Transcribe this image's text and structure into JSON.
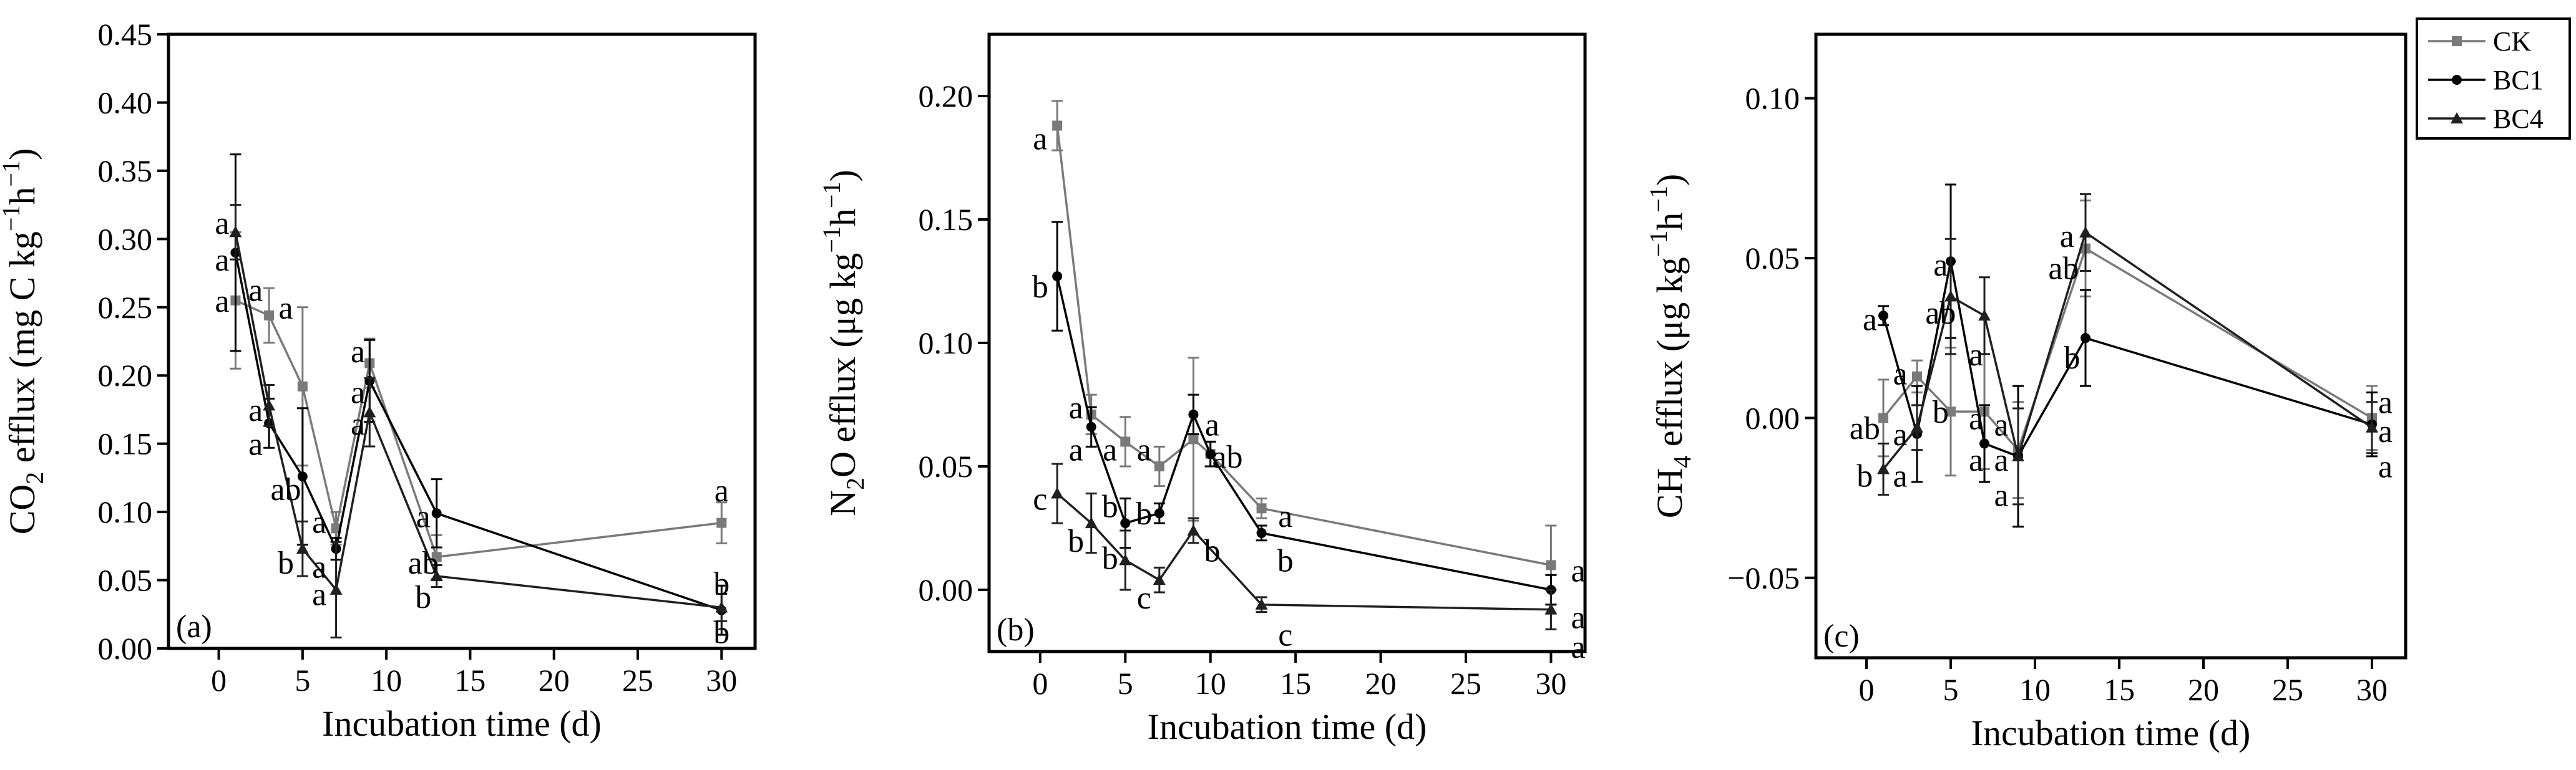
{
  "colors": {
    "CK": "#7a7a7a",
    "BC1": "#000000",
    "BC4": "#202020"
  },
  "legend": [
    {
      "key": "CK",
      "label": "CK",
      "marker": "square"
    },
    {
      "key": "BC1",
      "label": "BC1",
      "marker": "circle"
    },
    {
      "key": "BC4",
      "label": "BC4",
      "marker": "triangle"
    }
  ],
  "chart_data": [
    {
      "type": "line",
      "panel": "(a)",
      "xlabel": "Incubation time (d)",
      "ylabel_parts": [
        "CO",
        "2",
        " efflux (mg C kg",
        "−1",
        "h",
        "−1",
        ")"
      ],
      "xlim": [
        -3,
        32
      ],
      "ylim": [
        0,
        0.45
      ],
      "xticks": [
        0,
        5,
        10,
        15,
        20,
        25,
        30
      ],
      "xtick_labels": [
        "0",
        "5",
        "10",
        "15",
        "20",
        "25",
        "30"
      ],
      "yticks": [
        0,
        0.05,
        0.1,
        0.15,
        0.2,
        0.25,
        0.3,
        0.35,
        0.4,
        0.45
      ],
      "ytick_labels": [
        "0.00",
        "0.05",
        "0.10",
        "0.15",
        "0.20",
        "0.25",
        "0.30",
        "0.35",
        "0.40",
        "0.45"
      ],
      "series": [
        {
          "name": "CK",
          "x": [
            1,
            3,
            5,
            7,
            9,
            13,
            30
          ],
          "y": [
            0.255,
            0.244,
            0.192,
            0.088,
            0.209,
            0.067,
            0.092
          ],
          "err": [
            0.05,
            0.02,
            0.058,
            0.012,
            0.018,
            0.016,
            0.015
          ]
        },
        {
          "name": "BC1",
          "x": [
            1,
            3,
            5,
            7,
            9,
            13,
            30
          ],
          "y": [
            0.29,
            0.165,
            0.126,
            0.073,
            0.196,
            0.099,
            0.028
          ],
          "err": [
            0.072,
            0.018,
            0.05,
            0.008,
            0.03,
            0.025,
            0.018
          ]
        },
        {
          "name": "BC4",
          "x": [
            1,
            3,
            5,
            7,
            9,
            13,
            30
          ],
          "y": [
            0.305,
            0.178,
            0.073,
            0.043,
            0.173,
            0.053,
            0.03
          ],
          "err": [
            0.02,
            0.015,
            0.02,
            0.035,
            0.025,
            0.008,
            0.01
          ]
        }
      ],
      "annotations": [
        {
          "x": 0.2,
          "y": 0.312,
          "text": "a"
        },
        {
          "x": 0.2,
          "y": 0.285,
          "text": "a"
        },
        {
          "x": 0.2,
          "y": 0.255,
          "text": "a"
        },
        {
          "x": 2.2,
          "y": 0.263,
          "text": "a"
        },
        {
          "x": 2.2,
          "y": 0.175,
          "text": "a"
        },
        {
          "x": 2.2,
          "y": 0.15,
          "text": "a"
        },
        {
          "x": 4.0,
          "y": 0.25,
          "text": "a"
        },
        {
          "x": 4.0,
          "y": 0.117,
          "text": "ab"
        },
        {
          "x": 4.0,
          "y": 0.063,
          "text": "b"
        },
        {
          "x": 6.0,
          "y": 0.093,
          "text": "a"
        },
        {
          "x": 6.0,
          "y": 0.06,
          "text": "a"
        },
        {
          "x": 6.0,
          "y": 0.04,
          "text": "a"
        },
        {
          "x": 8.3,
          "y": 0.218,
          "text": "a"
        },
        {
          "x": 8.3,
          "y": 0.188,
          "text": "a"
        },
        {
          "x": 8.3,
          "y": 0.165,
          "text": "a"
        },
        {
          "x": 12.2,
          "y": 0.097,
          "text": "a"
        },
        {
          "x": 12.2,
          "y": 0.063,
          "text": "ab"
        },
        {
          "x": 12.2,
          "y": 0.038,
          "text": "b"
        },
        {
          "x": 30,
          "y": 0.116,
          "text": "a"
        },
        {
          "x": 30,
          "y": 0.048,
          "text": "b"
        },
        {
          "x": 30,
          "y": 0.012,
          "text": "b"
        }
      ]
    },
    {
      "type": "line",
      "panel": "(b)",
      "xlabel": "Incubation time (d)",
      "ylabel_parts": [
        "N",
        "2",
        "O efflux (μg kg",
        "−1",
        "h",
        "−1",
        ")"
      ],
      "xlim": [
        -3,
        32
      ],
      "ylim": [
        -0.025,
        0.225
      ],
      "xticks": [
        0,
        5,
        10,
        15,
        20,
        25,
        30
      ],
      "xtick_labels": [
        "0",
        "5",
        "10",
        "15",
        "20",
        "25",
        "30"
      ],
      "yticks": [
        0,
        0.05,
        0.1,
        0.15,
        0.2
      ],
      "ytick_labels": [
        "0.00",
        "0.05",
        "0.10",
        "0.15",
        "0.20"
      ],
      "series": [
        {
          "name": "CK",
          "x": [
            1,
            3,
            5,
            7,
            9,
            10,
            13,
            30
          ],
          "y": [
            0.188,
            0.071,
            0.06,
            0.05,
            0.061,
            0.055,
            0.033,
            0.01
          ],
          "err": [
            0.01,
            0.008,
            0.01,
            0.008,
            0.033,
            0.005,
            0.004,
            0.016
          ]
        },
        {
          "name": "BC1",
          "x": [
            1,
            3,
            5,
            7,
            9,
            10,
            13,
            30
          ],
          "y": [
            0.127,
            0.066,
            0.027,
            0.031,
            0.071,
            0.055,
            0.023,
            0.0
          ],
          "err": [
            0.022,
            0.008,
            0.01,
            0.004,
            0.008,
            0.005,
            0.003,
            0.006
          ]
        },
        {
          "name": "BC4",
          "x": [
            1,
            3,
            5,
            7,
            9,
            13,
            30
          ],
          "y": [
            0.039,
            0.027,
            0.012,
            0.004,
            0.024,
            -0.006,
            -0.008
          ],
          "err": [
            0.012,
            0.012,
            0.012,
            0.005,
            0.005,
            0.003,
            0.008
          ]
        }
      ],
      "annotations": [
        {
          "x": 0.0,
          "y": 0.183,
          "text": "a"
        },
        {
          "x": 0.0,
          "y": 0.123,
          "text": "b"
        },
        {
          "x": 0.0,
          "y": 0.037,
          "text": "c"
        },
        {
          "x": 2.1,
          "y": 0.074,
          "text": "a"
        },
        {
          "x": 2.1,
          "y": 0.057,
          "text": "a"
        },
        {
          "x": 2.1,
          "y": 0.02,
          "text": "b"
        },
        {
          "x": 4.1,
          "y": 0.057,
          "text": "a"
        },
        {
          "x": 4.1,
          "y": 0.034,
          "text": "b"
        },
        {
          "x": 4.1,
          "y": 0.013,
          "text": "b"
        },
        {
          "x": 6.1,
          "y": 0.057,
          "text": "a"
        },
        {
          "x": 6.1,
          "y": 0.031,
          "text": "b"
        },
        {
          "x": 6.1,
          "y": -0.003,
          "text": "c"
        },
        {
          "x": 10.1,
          "y": 0.067,
          "text": "a"
        },
        {
          "x": 11.0,
          "y": 0.054,
          "text": "ab"
        },
        {
          "x": 10.1,
          "y": 0.016,
          "text": "b"
        },
        {
          "x": 14.4,
          "y": 0.03,
          "text": "a"
        },
        {
          "x": 14.4,
          "y": 0.012,
          "text": "b"
        },
        {
          "x": 14.4,
          "y": -0.018,
          "text": "c"
        },
        {
          "x": 31.6,
          "y": 0.008,
          "text": "a"
        },
        {
          "x": 31.6,
          "y": -0.011,
          "text": "a"
        },
        {
          "x": 31.6,
          "y": -0.023,
          "text": "a"
        }
      ]
    },
    {
      "type": "line",
      "panel": "(c)",
      "xlabel": "Incubation time (d)",
      "ylabel_parts": [
        "CH",
        "4",
        " efflux (μg kg",
        "−1",
        "h",
        "−1",
        ")"
      ],
      "xlim": [
        -3,
        32
      ],
      "ylim": [
        -0.075,
        0.12
      ],
      "xticks": [
        0,
        5,
        10,
        15,
        20,
        25,
        30
      ],
      "xtick_labels": [
        "0",
        "5",
        "10",
        "15",
        "20",
        "25",
        "30"
      ],
      "yticks": [
        -0.05,
        0,
        0.05,
        0.1
      ],
      "ytick_labels": [
        "−0.05",
        "0.00",
        "0.05",
        "0.10"
      ],
      "series": [
        {
          "name": "CK",
          "x": [
            1,
            3,
            5,
            7,
            9,
            13,
            30
          ],
          "y": [
            0.0,
            0.013,
            0.002,
            0.002,
            -0.01,
            0.053,
            0.0
          ],
          "err": [
            0.012,
            0.005,
            0.02,
            0.018,
            0.015,
            0.015,
            0.01
          ]
        },
        {
          "name": "BC1",
          "x": [
            1,
            3,
            5,
            7,
            9,
            13,
            30
          ],
          "y": [
            0.032,
            -0.005,
            0.049,
            -0.008,
            -0.012,
            0.025,
            -0.002
          ],
          "err": [
            0.003,
            0.015,
            0.024,
            0.012,
            0.022,
            0.015,
            0.01
          ]
        },
        {
          "name": "BC4",
          "x": [
            1,
            3,
            5,
            7,
            9,
            13,
            30
          ],
          "y": [
            -0.016,
            -0.003,
            0.038,
            0.032,
            -0.012,
            0.058,
            -0.003
          ],
          "err": [
            0.008,
            0.007,
            0.018,
            0.012,
            0.015,
            0.012,
            0.008
          ]
        }
      ],
      "annotations": [
        {
          "x": 0.2,
          "y": 0.031,
          "text": "a"
        },
        {
          "x": -0.1,
          "y": -0.003,
          "text": "ab"
        },
        {
          "x": -0.1,
          "y": -0.018,
          "text": "b"
        },
        {
          "x": 2.0,
          "y": 0.014,
          "text": "a"
        },
        {
          "x": 2.0,
          "y": -0.005,
          "text": "a"
        },
        {
          "x": 2.0,
          "y": -0.018,
          "text": "a"
        },
        {
          "x": 4.4,
          "y": 0.048,
          "text": "a"
        },
        {
          "x": 4.4,
          "y": 0.033,
          "text": "ab"
        },
        {
          "x": 4.4,
          "y": 0.002,
          "text": "b"
        },
        {
          "x": 6.5,
          "y": 0.02,
          "text": "a"
        },
        {
          "x": 6.5,
          "y": 0.0,
          "text": "a"
        },
        {
          "x": 6.5,
          "y": -0.013,
          "text": "a"
        },
        {
          "x": 8.0,
          "y": -0.002,
          "text": "a"
        },
        {
          "x": 8.0,
          "y": -0.013,
          "text": "a"
        },
        {
          "x": 8.0,
          "y": -0.024,
          "text": "a"
        },
        {
          "x": 11.9,
          "y": 0.057,
          "text": "a"
        },
        {
          "x": 11.7,
          "y": 0.047,
          "text": "ab"
        },
        {
          "x": 12.2,
          "y": 0.019,
          "text": "b"
        },
        {
          "x": 30.8,
          "y": 0.005,
          "text": "a"
        },
        {
          "x": 30.8,
          "y": -0.004,
          "text": "a"
        },
        {
          "x": 30.8,
          "y": -0.015,
          "text": "a"
        }
      ]
    }
  ]
}
